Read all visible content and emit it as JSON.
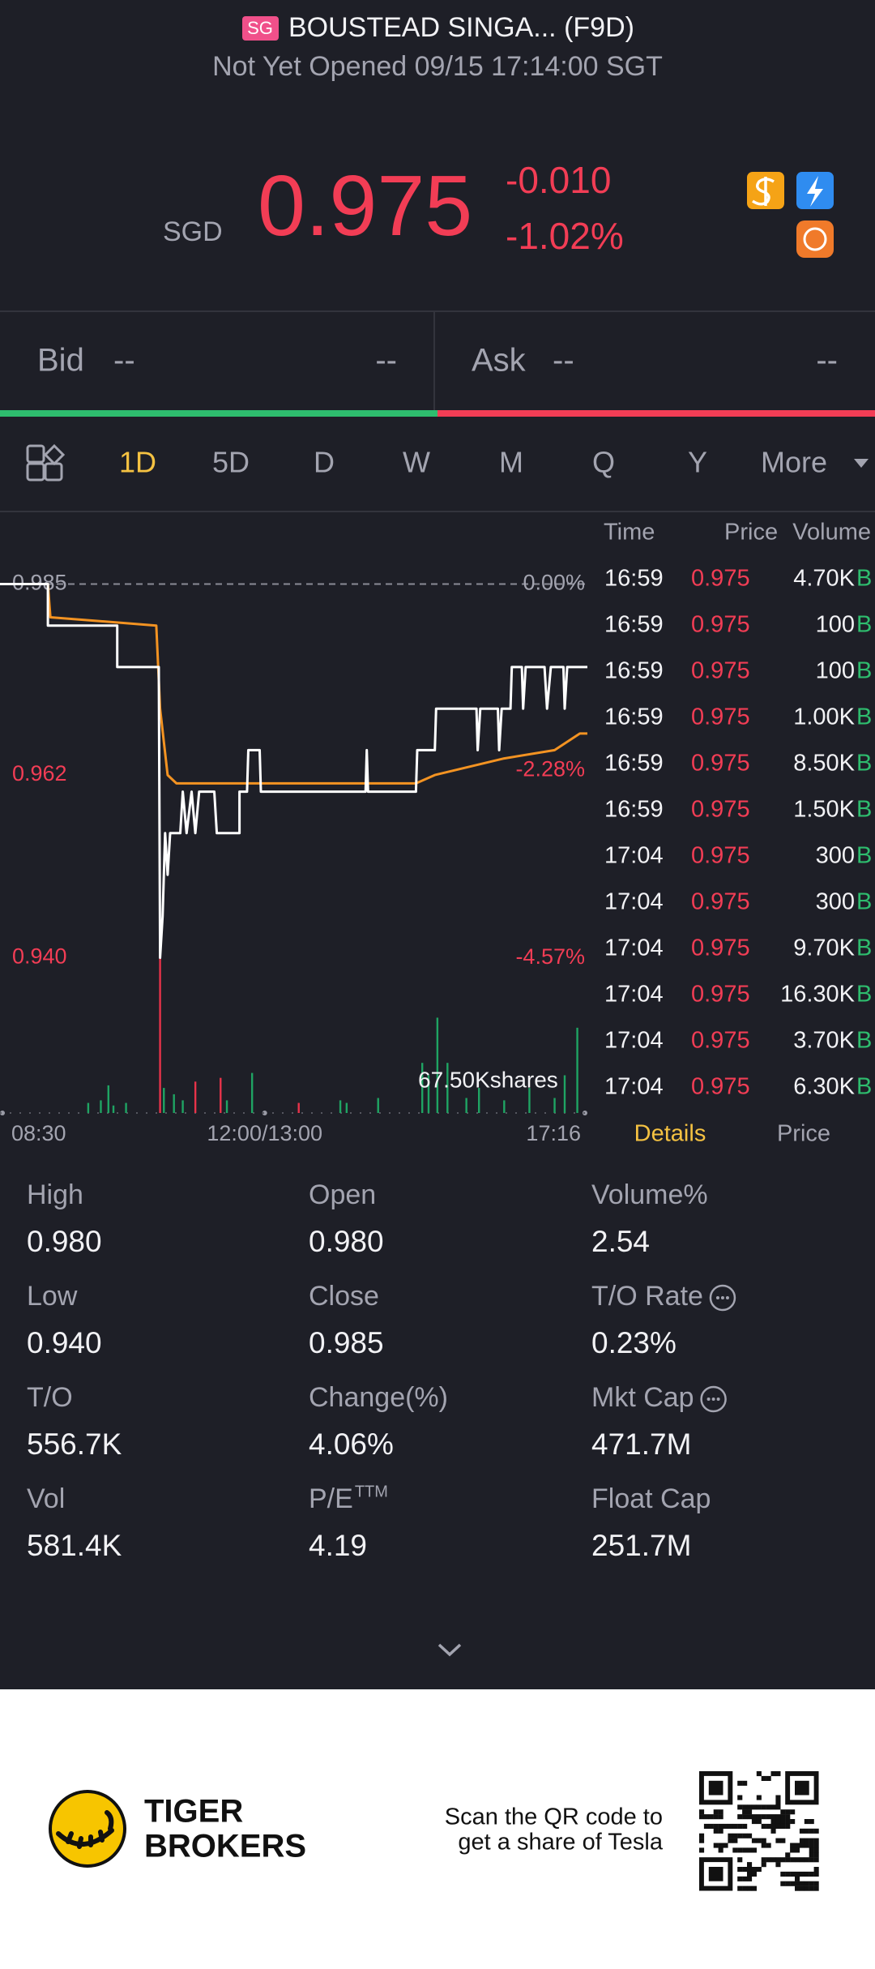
{
  "header": {
    "badge": "SG",
    "title": "BOUSTEAD SINGA... (F9D)",
    "subtitle": "Not Yet Opened 09/15 17:14:00 SGT"
  },
  "quote": {
    "currency": "SGD",
    "price": "0.975",
    "change": "-0.010",
    "change_percent": "-1.02%"
  },
  "bid": {
    "label": "Bid",
    "price": "--",
    "size": "--"
  },
  "ask": {
    "label": "Ask",
    "price": "--",
    "size": "--"
  },
  "tabs": {
    "items": [
      "1D",
      "5D",
      "D",
      "W",
      "M",
      "Q",
      "Y",
      "More"
    ],
    "active": 0
  },
  "intraday_chart": {
    "type": "line",
    "xlim": [
      0,
      466
    ],
    "xticks": [
      {
        "value": 0,
        "label": "08:30"
      },
      {
        "value": 210,
        "label": "12:00/13:00"
      },
      {
        "value": 466,
        "label": "17:16"
      }
    ],
    "ylim": [
      0.938,
      0.987
    ],
    "yticks": [
      0.985,
      0.962,
      {
        "value": 0.94,
        "label": "0.940"
      }
    ],
    "y2lim": [
      -4.77,
      0.2
    ],
    "y2ticks": [
      {
        "value": 0,
        "label": "0.00%"
      },
      {
        "value": -2.28,
        "label": "-2.28%"
      },
      {
        "value": -4.57,
        "label": "-4.57%"
      }
    ],
    "price": {
      "color": "#ffffff",
      "x": [
        0,
        38,
        38,
        93,
        93,
        126,
        127,
        129,
        131,
        133,
        135,
        143,
        145,
        148,
        152,
        155,
        158,
        170,
        172,
        190,
        190,
        196,
        197,
        206,
        207,
        290,
        291,
        292,
        330,
        331,
        345,
        346,
        378,
        379,
        381,
        395,
        396,
        398,
        405,
        406,
        414,
        415,
        417,
        432,
        434,
        437,
        447,
        448,
        450,
        466
      ],
      "values": [
        0.985,
        0.985,
        0.98,
        0.98,
        0.975,
        0.975,
        0.94,
        0.945,
        0.955,
        0.95,
        0.955,
        0.955,
        0.96,
        0.955,
        0.96,
        0.955,
        0.96,
        0.96,
        0.955,
        0.955,
        0.96,
        0.96,
        0.965,
        0.965,
        0.96,
        0.96,
        0.965,
        0.96,
        0.96,
        0.965,
        0.965,
        0.97,
        0.97,
        0.965,
        0.97,
        0.97,
        0.965,
        0.97,
        0.97,
        0.975,
        0.975,
        0.97,
        0.975,
        0.975,
        0.97,
        0.975,
        0.975,
        0.97,
        0.975,
        0.975
      ]
    },
    "average": {
      "color": "#f39322",
      "x": [
        0,
        38,
        40,
        124,
        127,
        133,
        140,
        200,
        330,
        345,
        400,
        440,
        460,
        466
      ],
      "values": [
        0.985,
        0.985,
        0.981,
        0.98,
        0.97,
        0.962,
        0.961,
        0.961,
        0.961,
        0.962,
        0.964,
        0.965,
        0.967,
        0.967
      ]
    },
    "volume": {
      "x": [
        70,
        80,
        86,
        90,
        100,
        127,
        130,
        138,
        145,
        155,
        175,
        180,
        200,
        237,
        270,
        275,
        300,
        335,
        340,
        347,
        355,
        370,
        380,
        400,
        420,
        440,
        448,
        458
      ],
      "values": [
        4300,
        5400,
        11800,
        3200,
        4300,
        67500,
        10700,
        8000,
        5400,
        13400,
        15000,
        5400,
        17100,
        4300,
        5400,
        4300,
        6400,
        21400,
        16100,
        40700,
        21400,
        6400,
        10700,
        5400,
        10700,
        6400,
        16100,
        36400
      ],
      "colors": [
        "#1fa463",
        "#1fa463",
        "#1fa463",
        "#1fa463",
        "#1fa463",
        "#e8334a",
        "#1fa463",
        "#1fa463",
        "#1fa463",
        "#e8334a",
        "#e8334a",
        "#1fa463",
        "#1fa463",
        "#e8334a",
        "#1fa463",
        "#1fa463",
        "#1fa463",
        "#1fa463",
        "#1fa463",
        "#1fa463",
        "#1fa463",
        "#1fa463",
        "#1fa463",
        "#1fa463",
        "#1fa463",
        "#1fa463",
        "#1fa463",
        "#1fa463"
      ],
      "vlim": [
        0,
        67500
      ],
      "vlim_label": "67.50Kshares"
    }
  },
  "trades": {
    "headers": [
      "Time",
      "Price",
      "Volume"
    ],
    "rows": [
      [
        "16:59",
        "0.975",
        "4.70K",
        "B"
      ],
      [
        "16:59",
        "0.975",
        "100",
        "B"
      ],
      [
        "16:59",
        "0.975",
        "100",
        "B"
      ],
      [
        "16:59",
        "0.975",
        "1.00K",
        "B"
      ],
      [
        "16:59",
        "0.975",
        "8.50K",
        "B"
      ],
      [
        "16:59",
        "0.975",
        "1.50K",
        "B"
      ],
      [
        "17:04",
        "0.975",
        "300",
        "B"
      ],
      [
        "17:04",
        "0.975",
        "300",
        "B"
      ],
      [
        "17:04",
        "0.975",
        "9.70K",
        "B"
      ],
      [
        "17:04",
        "0.975",
        "16.30K",
        "B"
      ],
      [
        "17:04",
        "0.975",
        "3.70K",
        "B"
      ],
      [
        "17:04",
        "0.975",
        "6.30K",
        "B"
      ]
    ],
    "tabs": [
      "Details",
      "Price"
    ]
  },
  "stats": [
    {
      "label": "High",
      "value": "0.980"
    },
    {
      "label": "Open",
      "value": "0.980"
    },
    {
      "label": "Volume%",
      "value": "2.54"
    },
    {
      "label": "Low",
      "value": "0.940"
    },
    {
      "label": "Close",
      "value": "0.985"
    },
    {
      "label": "T/O Rate",
      "value": "0.23%",
      "info": true
    },
    {
      "label": "T/O",
      "value": "556.7K"
    },
    {
      "label": "Change(%)",
      "value": "4.06%"
    },
    {
      "label": "Mkt Cap",
      "value": "471.7M",
      "info": true
    },
    {
      "label": "Vol",
      "value": "581.4K"
    },
    {
      "label": "P/E",
      "label_sup": "TTM",
      "value": "4.19"
    },
    {
      "label": "Float Cap",
      "value": "251.7M"
    }
  ],
  "footer": {
    "brand": [
      "TIGER",
      "BROKERS"
    ],
    "promo": [
      "Scan the QR code to",
      "get a share of Tesla"
    ]
  }
}
